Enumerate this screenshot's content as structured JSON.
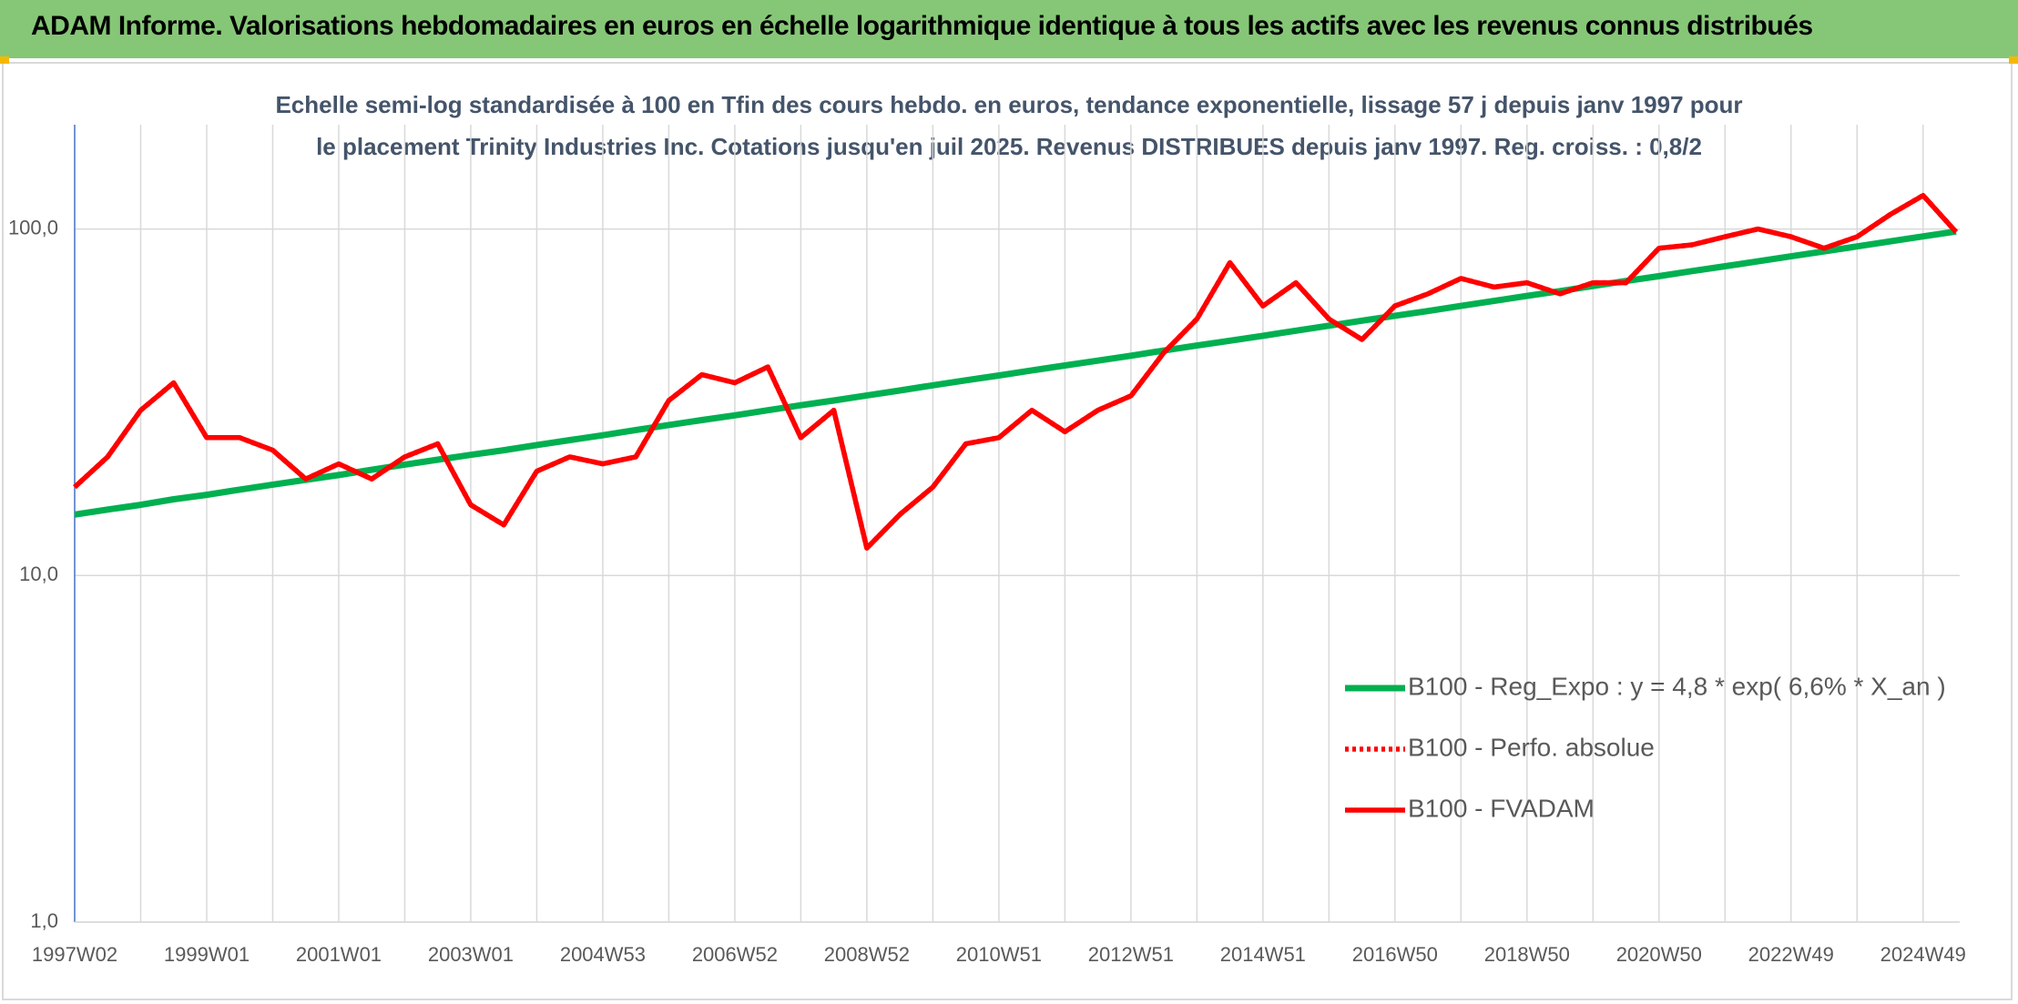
{
  "header": {
    "title": "ADAM Informe. Valorisations hebdomadaires en euros en échelle logarithmique identique à tous les actifs avec les revenus connus distribués"
  },
  "chart_data": {
    "type": "line",
    "subtitle": "Echelle semi-log standardisée à 100 en Tfin des cours hebdo. en euros, tendance exponentielle, lissage 57 j depuis janv 1997 pour le placement Trinity Industries Inc. Cotations jusqu'en juil 2025. Revenus DISTRIBUES depuis janv 1997. Reg. croiss. : 0,8/2",
    "categories": [
      "1997W02",
      null,
      null,
      null,
      "1999W01",
      null,
      null,
      null,
      "2001W01",
      null,
      null,
      null,
      "2003W01",
      null,
      null,
      null,
      "2004W53",
      null,
      null,
      null,
      "2006W52",
      null,
      null,
      null,
      "2008W52",
      null,
      null,
      null,
      "2010W51",
      null,
      null,
      null,
      "2012W51",
      null,
      null,
      null,
      "2014W51",
      null,
      null,
      null,
      "2016W50",
      null,
      null,
      null,
      "2018W50",
      null,
      null,
      null,
      "2020W50",
      null,
      null,
      null,
      "2022W49",
      null,
      null,
      null,
      "2024W49",
      null
    ],
    "series": [
      {
        "name": "B100 - Reg_Expo : y = 4,8 * exp( 6,6% *  X_an )",
        "color": "#00b050",
        "line_style": "solid",
        "values": [
          15.0,
          15.5,
          16.0,
          16.6,
          17.1,
          17.7,
          18.3,
          18.9,
          19.5,
          20.2,
          20.9,
          21.6,
          22.3,
          23.0,
          23.8,
          24.6,
          25.4,
          26.3,
          27.2,
          28.1,
          29.0,
          30.0,
          31.0,
          32.0,
          33.1,
          34.2,
          35.4,
          36.6,
          37.8,
          39.1,
          40.4,
          41.7,
          43.1,
          44.6,
          46.1,
          47.6,
          49.2,
          50.9,
          52.6,
          54.4,
          56.2,
          58.0,
          60.0,
          62.0,
          64.1,
          66.2,
          68.5,
          70.8,
          73.1,
          75.6,
          78.1,
          80.7,
          83.4,
          86.2,
          89.1,
          92.1,
          95.2,
          98.4
        ]
      },
      {
        "name": "B100 - Perfo. absolue",
        "color": "#ff0000",
        "line_style": "dotted",
        "values": [
          18,
          22,
          30,
          36,
          25,
          25,
          23,
          19,
          21,
          19,
          22,
          24,
          16,
          14,
          20,
          22,
          21,
          22,
          32,
          38,
          36,
          40,
          25,
          30,
          12,
          15,
          18,
          24,
          25,
          30,
          26,
          30,
          33,
          44,
          55,
          80,
          60,
          70,
          55,
          48,
          60,
          65,
          72,
          68,
          70,
          65,
          70,
          70,
          88,
          90,
          95,
          100,
          95,
          88,
          95,
          110,
          125,
          98
        ]
      },
      {
        "name": "B100 - FVADAM",
        "color": "#ff0000",
        "line_style": "solid",
        "values": [
          18,
          22,
          30,
          36,
          25,
          25,
          23,
          19,
          21,
          19,
          22,
          24,
          16,
          14,
          20,
          22,
          21,
          22,
          32,
          38,
          36,
          40,
          25,
          30,
          12,
          15,
          18,
          24,
          25,
          30,
          26,
          30,
          33,
          44,
          55,
          80,
          60,
          70,
          55,
          48,
          60,
          65,
          72,
          68,
          70,
          65,
          70,
          70,
          88,
          90,
          95,
          100,
          95,
          88,
          95,
          110,
          125,
          98
        ]
      }
    ],
    "log_scale": true,
    "ylim": [
      1,
      200
    ],
    "yticks": [
      {
        "value": 1,
        "label": "1,0"
      },
      {
        "value": 10,
        "label": "10,0"
      },
      {
        "value": 100,
        "label": "100,0"
      }
    ],
    "grid": true
  }
}
